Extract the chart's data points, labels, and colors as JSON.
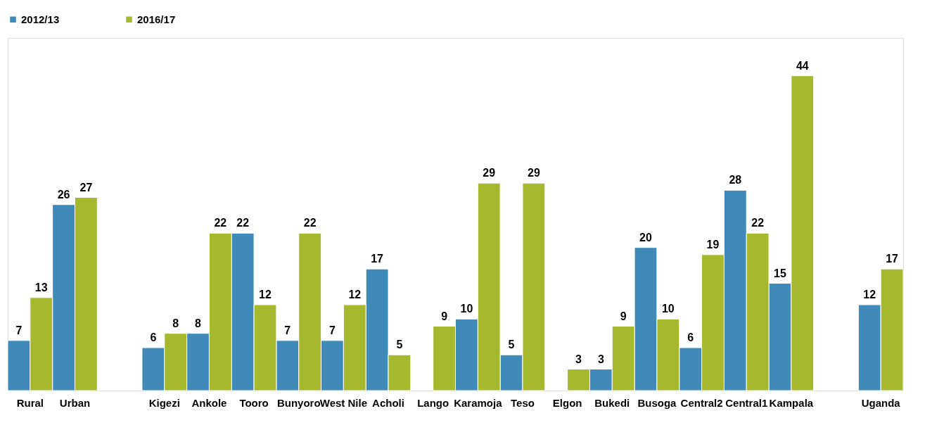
{
  "chart_data": {
    "type": "bar",
    "categories": [
      "Rural",
      "Urban",
      null,
      "Kigezi",
      "Ankole",
      "Tooro",
      "Bunyoro",
      "West Nile",
      "Acholi",
      "Lango",
      "Karamoja",
      "Teso",
      "Elgon",
      "Bukedi",
      "Busoga",
      "Central2",
      "Central1",
      "Kampala",
      null,
      "Uganda"
    ],
    "series": [
      {
        "name": "2012/13",
        "color": "#3f8ab8",
        "values": [
          7,
          26,
          null,
          6,
          8,
          22,
          7,
          7,
          17,
          null,
          10,
          5,
          null,
          3,
          20,
          6,
          28,
          15,
          null,
          12
        ]
      },
      {
        "name": "2016/17",
        "color": "#a6b92e",
        "values": [
          13,
          27,
          null,
          8,
          22,
          12,
          22,
          12,
          5,
          9,
          29,
          29,
          3,
          9,
          10,
          19,
          22,
          44,
          null,
          17
        ]
      }
    ],
    "data_labels": true,
    "legend": "top",
    "grid": false
  }
}
